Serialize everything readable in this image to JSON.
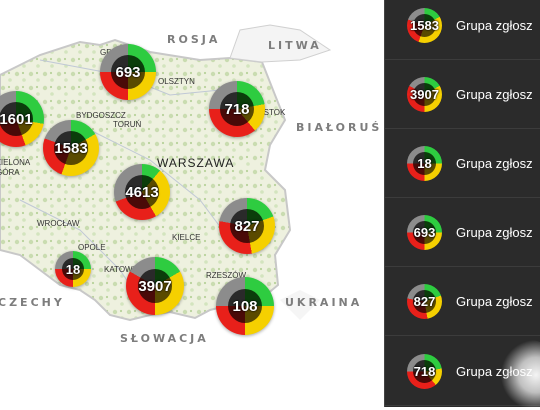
{
  "map": {
    "country_labels": [
      "ROSJA",
      "LITWA",
      "BIAŁORUŚ",
      "UKRAINA",
      "SŁOWACJA",
      "CZECHY"
    ],
    "cities": [
      "GDAŃSK",
      "OLSZTYN",
      "BYDGOSZCZ",
      "TORUŃ",
      "WARSZAWA",
      "BIAŁYSTOK",
      "ZIELONA GÓRA",
      "WROCŁAW",
      "OPOLE",
      "KATOWICE",
      "KIELCE",
      "RZESZÓW"
    ],
    "clusters": [
      {
        "id": "gdansk",
        "count": "693"
      },
      {
        "id": "bialystok",
        "count": "718"
      },
      {
        "id": "poznan",
        "count": "1601"
      },
      {
        "id": "bydgoszcz",
        "count": "1583"
      },
      {
        "id": "lodz",
        "count": "4613"
      },
      {
        "id": "lublin",
        "count": "827"
      },
      {
        "id": "opole",
        "count": "18"
      },
      {
        "id": "krakow",
        "count": "3907"
      },
      {
        "id": "rzeszow",
        "count": "108"
      }
    ]
  },
  "sidebar": {
    "items": [
      {
        "count": "1583",
        "label": "Grupa zgłosz"
      },
      {
        "count": "3907",
        "label": "Grupa zgłosz"
      },
      {
        "count": "18",
        "label": "Grupa zgłosz"
      },
      {
        "count": "693",
        "label": "Grupa zgłosz"
      },
      {
        "count": "827",
        "label": "Grupa zgłosz"
      },
      {
        "count": "718",
        "label": "Grupa zgłosz"
      }
    ]
  },
  "colors": {
    "green": "#2ecc40",
    "yellow": "#f5d000",
    "red": "#e8201a",
    "gray": "#8c8c8c",
    "inner_dark": "#1a0a06",
    "panel": "#2b2b2b",
    "map_land": "#eef0e2",
    "map_border": "#c8c8c8"
  }
}
